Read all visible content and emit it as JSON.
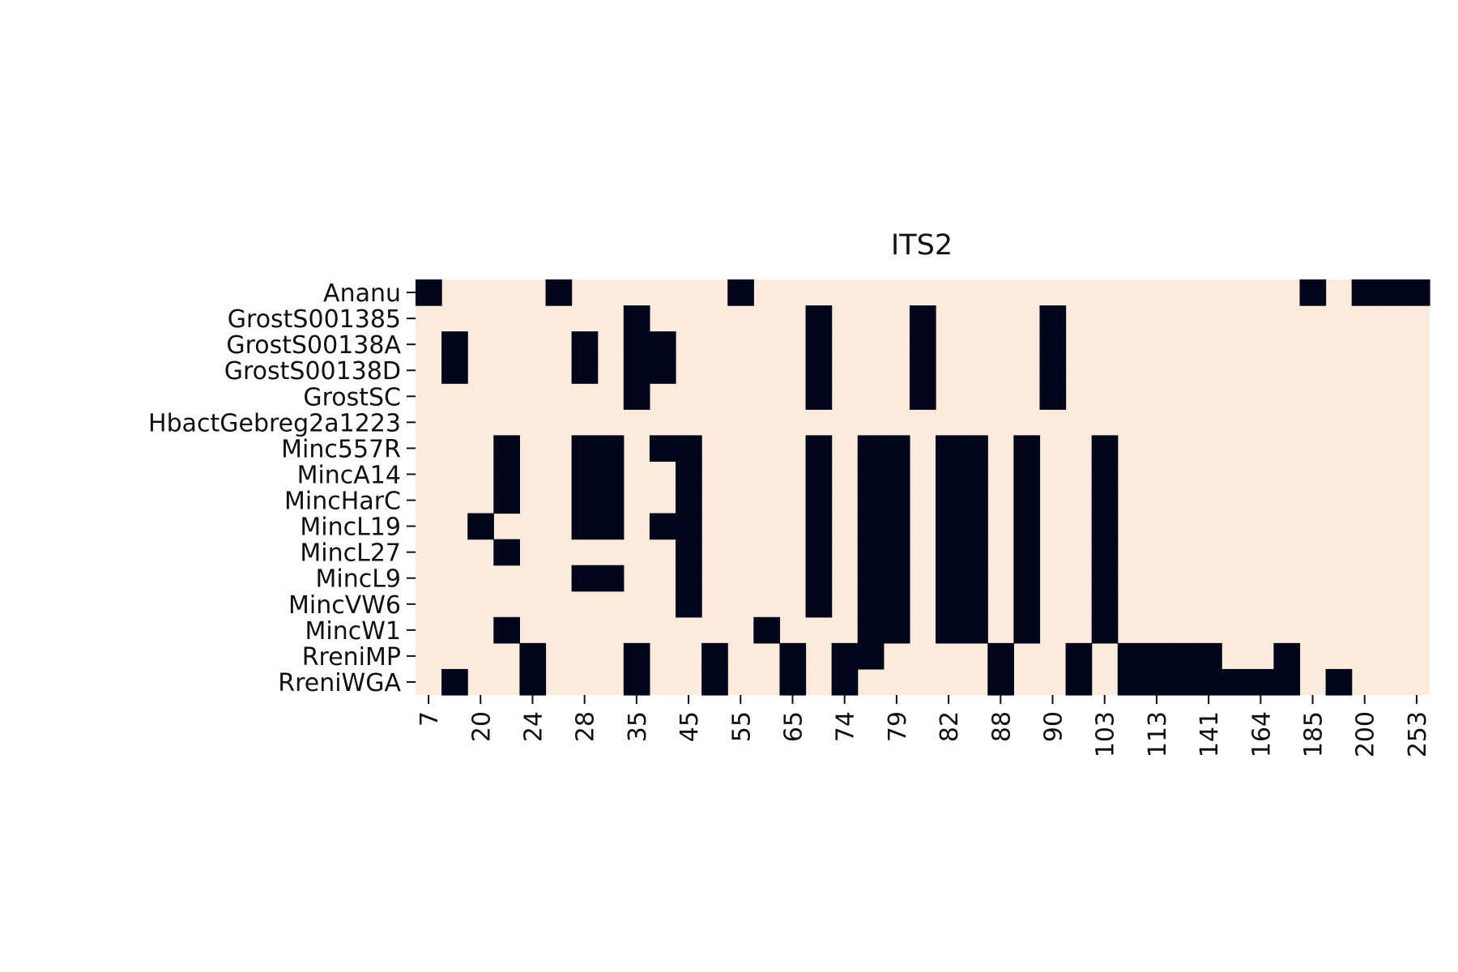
{
  "chart_data": {
    "type": "heatmap",
    "title": "ITS2",
    "xlabel": "",
    "ylabel": "",
    "grid": false,
    "legend": "none",
    "colorbar": false,
    "colors": {
      "presence": "#03051a",
      "absence": "#faebdd"
    },
    "rows": [
      "Ananu",
      "GrostS001385",
      "GrostS00138A",
      "GrostS00138D",
      "GrostSC",
      "HbactGebreg2a1223",
      "Minc557R",
      "MincA14",
      "MincHarC",
      "MincL19",
      "MincL27",
      "MincL9",
      "MincVW6",
      "MincW1",
      "RreniMP",
      "RreniWGA"
    ],
    "n_columns": 39,
    "x_tick_labels": [
      "7",
      "20",
      "24",
      "28",
      "35",
      "45",
      "55",
      "65",
      "74",
      "79",
      "82",
      "88",
      "90",
      "103",
      "113",
      "141",
      "164",
      "185",
      "200",
      "253"
    ],
    "x_tick_columns": [
      0,
      2,
      4,
      6,
      8,
      10,
      12,
      14,
      16,
      18,
      20,
      22,
      24,
      26,
      28,
      30,
      32,
      34,
      36,
      38
    ],
    "values": [
      [
        1,
        0,
        0,
        0,
        0,
        1,
        0,
        0,
        0,
        0,
        0,
        0,
        1,
        0,
        0,
        0,
        0,
        0,
        0,
        0,
        0,
        0,
        0,
        0,
        0,
        0,
        0,
        0,
        0,
        0,
        0,
        0,
        0,
        0,
        1,
        0,
        1,
        1,
        1
      ],
      [
        0,
        0,
        0,
        0,
        0,
        0,
        0,
        0,
        1,
        0,
        0,
        0,
        0,
        0,
        0,
        1,
        0,
        0,
        0,
        1,
        0,
        0,
        0,
        0,
        1,
        0,
        0,
        0,
        0,
        0,
        0,
        0,
        0,
        0,
        0,
        0,
        0,
        0,
        0
      ],
      [
        0,
        1,
        0,
        0,
        0,
        0,
        1,
        0,
        1,
        1,
        0,
        0,
        0,
        0,
        0,
        1,
        0,
        0,
        0,
        1,
        0,
        0,
        0,
        0,
        1,
        0,
        0,
        0,
        0,
        0,
        0,
        0,
        0,
        0,
        0,
        0,
        0,
        0,
        0
      ],
      [
        0,
        1,
        0,
        0,
        0,
        0,
        1,
        0,
        1,
        1,
        0,
        0,
        0,
        0,
        0,
        1,
        0,
        0,
        0,
        1,
        0,
        0,
        0,
        0,
        1,
        0,
        0,
        0,
        0,
        0,
        0,
        0,
        0,
        0,
        0,
        0,
        0,
        0,
        0
      ],
      [
        0,
        0,
        0,
        0,
        0,
        0,
        0,
        0,
        1,
        0,
        0,
        0,
        0,
        0,
        0,
        1,
        0,
        0,
        0,
        1,
        0,
        0,
        0,
        0,
        1,
        0,
        0,
        0,
        0,
        0,
        0,
        0,
        0,
        0,
        0,
        0,
        0,
        0,
        0
      ],
      [
        0,
        0,
        0,
        0,
        0,
        0,
        0,
        0,
        0,
        0,
        0,
        0,
        0,
        0,
        0,
        0,
        0,
        0,
        0,
        0,
        0,
        0,
        0,
        0,
        0,
        0,
        0,
        0,
        0,
        0,
        0,
        0,
        0,
        0,
        0,
        0,
        0,
        0,
        0
      ],
      [
        0,
        0,
        0,
        1,
        0,
        0,
        1,
        1,
        0,
        1,
        1,
        0,
        0,
        0,
        0,
        1,
        0,
        1,
        1,
        0,
        1,
        1,
        0,
        1,
        0,
        0,
        1,
        0,
        0,
        0,
        0,
        0,
        0,
        0,
        0,
        0,
        0,
        0,
        0
      ],
      [
        0,
        0,
        0,
        1,
        0,
        0,
        1,
        1,
        0,
        0,
        1,
        0,
        0,
        0,
        0,
        1,
        0,
        1,
        1,
        0,
        1,
        1,
        0,
        1,
        0,
        0,
        1,
        0,
        0,
        0,
        0,
        0,
        0,
        0,
        0,
        0,
        0,
        0,
        0
      ],
      [
        0,
        0,
        0,
        1,
        0,
        0,
        1,
        1,
        0,
        0,
        1,
        0,
        0,
        0,
        0,
        1,
        0,
        1,
        1,
        0,
        1,
        1,
        0,
        1,
        0,
        0,
        1,
        0,
        0,
        0,
        0,
        0,
        0,
        0,
        0,
        0,
        0,
        0,
        0
      ],
      [
        0,
        0,
        1,
        0,
        0,
        0,
        1,
        1,
        0,
        1,
        1,
        0,
        0,
        0,
        0,
        1,
        0,
        1,
        1,
        0,
        1,
        1,
        0,
        1,
        0,
        0,
        1,
        0,
        0,
        0,
        0,
        0,
        0,
        0,
        0,
        0,
        0,
        0,
        0
      ],
      [
        0,
        0,
        0,
        1,
        0,
        0,
        0,
        0,
        0,
        0,
        1,
        0,
        0,
        0,
        0,
        1,
        0,
        1,
        1,
        0,
        1,
        1,
        0,
        1,
        0,
        0,
        1,
        0,
        0,
        0,
        0,
        0,
        0,
        0,
        0,
        0,
        0,
        0,
        0
      ],
      [
        0,
        0,
        0,
        0,
        0,
        0,
        1,
        1,
        0,
        0,
        1,
        0,
        0,
        0,
        0,
        1,
        0,
        1,
        1,
        0,
        1,
        1,
        0,
        1,
        0,
        0,
        1,
        0,
        0,
        0,
        0,
        0,
        0,
        0,
        0,
        0,
        0,
        0,
        0
      ],
      [
        0,
        0,
        0,
        0,
        0,
        0,
        0,
        0,
        0,
        0,
        1,
        0,
        0,
        0,
        0,
        1,
        0,
        1,
        1,
        0,
        1,
        1,
        0,
        1,
        0,
        0,
        1,
        0,
        0,
        0,
        0,
        0,
        0,
        0,
        0,
        0,
        0,
        0,
        0
      ],
      [
        0,
        0,
        0,
        1,
        0,
        0,
        0,
        0,
        0,
        0,
        0,
        0,
        0,
        1,
        0,
        0,
        0,
        1,
        1,
        0,
        1,
        1,
        0,
        1,
        0,
        0,
        1,
        0,
        0,
        0,
        0,
        0,
        0,
        0,
        0,
        0,
        0,
        0,
        0
      ],
      [
        0,
        0,
        0,
        0,
        1,
        0,
        0,
        0,
        1,
        0,
        0,
        1,
        0,
        0,
        1,
        0,
        1,
        1,
        0,
        0,
        0,
        0,
        1,
        0,
        0,
        1,
        0,
        1,
        1,
        1,
        1,
        0,
        0,
        1,
        0,
        0,
        0,
        0,
        0
      ],
      [
        0,
        1,
        0,
        0,
        1,
        0,
        0,
        0,
        1,
        0,
        0,
        1,
        0,
        0,
        1,
        0,
        1,
        0,
        0,
        0,
        0,
        0,
        1,
        0,
        0,
        1,
        0,
        1,
        1,
        1,
        1,
        1,
        1,
        1,
        0,
        1,
        0,
        0,
        0
      ]
    ]
  }
}
